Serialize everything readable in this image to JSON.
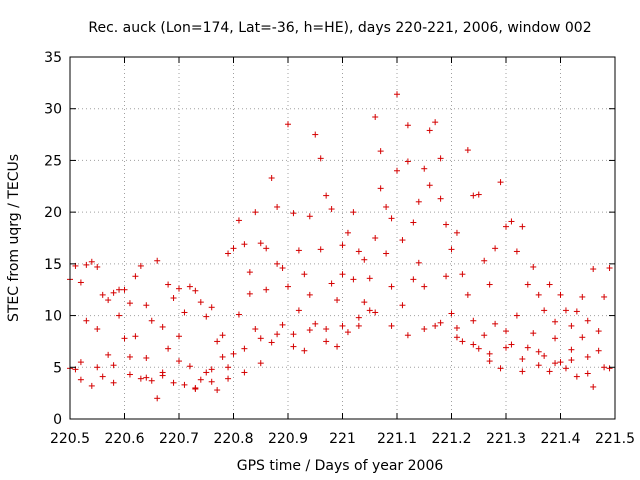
{
  "chart_data": {
    "type": "scatter",
    "title": "Rec. auck (Lon=174, Lat=-36, h=HE), days 220-221, 2006, window 002",
    "xlabel": "GPS time / Days of year 2006",
    "ylabel": "STEC from uqrg / TECUs",
    "xlim": [
      220.5,
      221.5
    ],
    "ylim": [
      0,
      35
    ],
    "xticks": [
      220.5,
      220.6,
      220.7,
      220.8,
      220.9,
      221,
      221.1,
      221.2,
      221.3,
      221.4,
      221.5
    ],
    "xtick_labels": [
      "220.5",
      "220.6",
      "220.7",
      "220.8",
      "220.9",
      "221",
      "221.1",
      "221.2",
      "221.3",
      "221.4",
      "221.5"
    ],
    "yticks": [
      0,
      5,
      10,
      15,
      20,
      25,
      30,
      35
    ],
    "ytick_labels": [
      "0",
      "5",
      "10",
      "15",
      "20",
      "25",
      "30",
      "35"
    ],
    "grid": true,
    "marker": "+",
    "color": "#d40000",
    "points": [
      [
        220.5,
        4.9
      ],
      [
        220.5,
        13.5
      ],
      [
        220.51,
        14.8
      ],
      [
        220.51,
        4.8
      ],
      [
        220.52,
        13.2
      ],
      [
        220.52,
        3.8
      ],
      [
        220.53,
        14.9
      ],
      [
        220.53,
        9.5
      ],
      [
        220.54,
        15.2
      ],
      [
        220.54,
        3.2
      ],
      [
        220.55,
        14.7
      ],
      [
        220.55,
        8.7
      ],
      [
        220.56,
        12.0
      ],
      [
        220.56,
        4.1
      ],
      [
        220.57,
        11.5
      ],
      [
        220.57,
        6.2
      ],
      [
        220.58,
        12.2
      ],
      [
        220.58,
        3.5
      ],
      [
        220.59,
        12.5
      ],
      [
        220.59,
        10.0
      ],
      [
        220.6,
        12.5
      ],
      [
        220.6,
        7.8
      ],
      [
        220.61,
        11.2
      ],
      [
        220.61,
        4.3
      ],
      [
        220.62,
        13.8
      ],
      [
        220.62,
        8.0
      ],
      [
        220.63,
        14.8
      ],
      [
        220.63,
        3.9
      ],
      [
        220.64,
        11.0
      ],
      [
        220.64,
        5.9
      ],
      [
        220.65,
        9.5
      ],
      [
        220.65,
        3.7
      ],
      [
        220.66,
        15.3
      ],
      [
        220.66,
        2.0
      ],
      [
        220.67,
        8.9
      ],
      [
        220.67,
        4.2
      ],
      [
        220.68,
        13.0
      ],
      [
        220.68,
        6.8
      ],
      [
        220.69,
        11.7
      ],
      [
        220.69,
        3.5
      ],
      [
        220.7,
        12.6
      ],
      [
        220.7,
        8.0
      ],
      [
        220.71,
        10.3
      ],
      [
        220.71,
        3.3
      ],
      [
        220.72,
        12.8
      ],
      [
        220.72,
        5.1
      ],
      [
        220.73,
        12.4
      ],
      [
        220.73,
        2.9
      ],
      [
        220.74,
        11.3
      ],
      [
        220.74,
        3.8
      ],
      [
        220.75,
        9.9
      ],
      [
        220.75,
        4.5
      ],
      [
        220.76,
        10.8
      ],
      [
        220.76,
        3.6
      ],
      [
        220.77,
        7.5
      ],
      [
        220.77,
        2.8
      ],
      [
        220.78,
        6.0
      ],
      [
        220.78,
        8.1
      ],
      [
        220.79,
        16.0
      ],
      [
        220.79,
        3.9
      ],
      [
        220.8,
        16.5
      ],
      [
        220.8,
        6.3
      ],
      [
        220.81,
        19.2
      ],
      [
        220.81,
        10.1
      ],
      [
        220.82,
        16.9
      ],
      [
        220.82,
        4.5
      ],
      [
        220.83,
        14.2
      ],
      [
        220.83,
        12.1
      ],
      [
        220.84,
        20.0
      ],
      [
        220.84,
        8.7
      ],
      [
        220.85,
        17.0
      ],
      [
        220.85,
        5.4
      ],
      [
        220.86,
        16.5
      ],
      [
        220.86,
        12.5
      ],
      [
        220.87,
        23.3
      ],
      [
        220.87,
        7.4
      ],
      [
        220.88,
        20.5
      ],
      [
        220.88,
        15.0
      ],
      [
        220.89,
        14.6
      ],
      [
        220.89,
        9.1
      ],
      [
        220.9,
        28.5
      ],
      [
        220.9,
        12.8
      ],
      [
        220.91,
        19.9
      ],
      [
        220.91,
        8.2
      ],
      [
        220.92,
        16.3
      ],
      [
        220.92,
        10.5
      ],
      [
        220.93,
        14.0
      ],
      [
        220.93,
        6.6
      ],
      [
        220.94,
        19.6
      ],
      [
        220.94,
        12.0
      ],
      [
        220.95,
        27.5
      ],
      [
        220.95,
        9.2
      ],
      [
        220.96,
        25.2
      ],
      [
        220.96,
        16.4
      ],
      [
        220.97,
        21.6
      ],
      [
        220.97,
        8.7
      ],
      [
        220.98,
        20.3
      ],
      [
        220.98,
        13.1
      ],
      [
        220.99,
        11.5
      ],
      [
        220.99,
        7.0
      ],
      [
        221.0,
        14.0
      ],
      [
        221.0,
        16.8
      ],
      [
        221.01,
        18.0
      ],
      [
        221.01,
        8.4
      ],
      [
        221.02,
        20.0
      ],
      [
        221.02,
        13.5
      ],
      [
        221.03,
        16.2
      ],
      [
        221.03,
        9.0
      ],
      [
        221.04,
        15.4
      ],
      [
        221.04,
        11.3
      ],
      [
        221.05,
        13.6
      ],
      [
        221.05,
        10.5
      ],
      [
        221.06,
        29.2
      ],
      [
        221.06,
        17.5
      ],
      [
        221.07,
        25.9
      ],
      [
        221.07,
        22.3
      ],
      [
        221.08,
        20.5
      ],
      [
        221.08,
        16.0
      ],
      [
        221.09,
        19.4
      ],
      [
        221.09,
        12.8
      ],
      [
        221.1,
        31.4
      ],
      [
        221.1,
        24.0
      ],
      [
        221.11,
        17.3
      ],
      [
        221.11,
        11.0
      ],
      [
        221.12,
        28.4
      ],
      [
        221.12,
        24.9
      ],
      [
        221.13,
        19.0
      ],
      [
        221.13,
        13.5
      ],
      [
        221.14,
        21.0
      ],
      [
        221.14,
        15.1
      ],
      [
        221.15,
        24.2
      ],
      [
        221.15,
        12.8
      ],
      [
        221.16,
        27.9
      ],
      [
        221.16,
        22.6
      ],
      [
        221.17,
        28.7
      ],
      [
        221.17,
        9.0
      ],
      [
        221.18,
        25.2
      ],
      [
        221.18,
        21.3
      ],
      [
        221.19,
        18.8
      ],
      [
        221.19,
        13.8
      ],
      [
        221.2,
        16.4
      ],
      [
        221.2,
        10.2
      ],
      [
        221.21,
        18.0
      ],
      [
        221.21,
        8.8
      ],
      [
        221.22,
        14.0
      ],
      [
        221.22,
        7.5
      ],
      [
        221.23,
        26.0
      ],
      [
        221.23,
        12.0
      ],
      [
        221.24,
        21.6
      ],
      [
        221.24,
        9.5
      ],
      [
        221.25,
        21.7
      ],
      [
        221.25,
        6.8
      ],
      [
        221.26,
        15.3
      ],
      [
        221.26,
        8.1
      ],
      [
        221.27,
        13.0
      ],
      [
        221.27,
        5.6
      ],
      [
        221.28,
        16.5
      ],
      [
        221.28,
        9.2
      ],
      [
        221.29,
        22.9
      ],
      [
        221.29,
        4.9
      ],
      [
        221.3,
        18.6
      ],
      [
        221.3,
        8.5
      ],
      [
        221.31,
        19.1
      ],
      [
        221.31,
        7.2
      ],
      [
        221.32,
        16.2
      ],
      [
        221.32,
        10.0
      ],
      [
        221.33,
        18.6
      ],
      [
        221.33,
        4.6
      ],
      [
        221.34,
        13.0
      ],
      [
        221.34,
        6.9
      ],
      [
        221.35,
        14.7
      ],
      [
        221.35,
        8.3
      ],
      [
        221.36,
        12.0
      ],
      [
        221.36,
        5.2
      ],
      [
        221.37,
        10.5
      ],
      [
        221.37,
        6.1
      ],
      [
        221.38,
        13.0
      ],
      [
        221.38,
        4.6
      ],
      [
        221.39,
        9.4
      ],
      [
        221.39,
        7.8
      ],
      [
        221.4,
        12.0
      ],
      [
        221.4,
        5.5
      ],
      [
        221.41,
        10.5
      ],
      [
        221.41,
        4.9
      ],
      [
        221.42,
        9.0
      ],
      [
        221.42,
        6.7
      ],
      [
        221.43,
        10.4
      ],
      [
        221.43,
        4.1
      ],
      [
        221.44,
        11.8
      ],
      [
        221.44,
        7.9
      ],
      [
        221.45,
        9.5
      ],
      [
        221.45,
        4.4
      ],
      [
        221.46,
        14.5
      ],
      [
        221.46,
        3.1
      ],
      [
        221.47,
        6.6
      ],
      [
        221.47,
        8.5
      ],
      [
        221.48,
        11.8
      ],
      [
        221.48,
        5.0
      ],
      [
        221.49,
        14.6
      ],
      [
        221.49,
        4.9
      ],
      [
        220.52,
        5.5
      ],
      [
        220.55,
        5.0
      ],
      [
        220.58,
        5.2
      ],
      [
        220.61,
        6.0
      ],
      [
        220.64,
        4.0
      ],
      [
        220.67,
        4.5
      ],
      [
        220.7,
        5.6
      ],
      [
        220.73,
        3.0
      ],
      [
        220.76,
        4.8
      ],
      [
        220.79,
        5.0
      ],
      [
        220.82,
        6.8
      ],
      [
        220.85,
        7.8
      ],
      [
        220.88,
        8.2
      ],
      [
        220.91,
        7.0
      ],
      [
        220.94,
        8.6
      ],
      [
        220.97,
        7.5
      ],
      [
        221.0,
        9.0
      ],
      [
        221.03,
        9.8
      ],
      [
        221.06,
        10.3
      ],
      [
        221.09,
        9.0
      ],
      [
        221.12,
        8.1
      ],
      [
        221.15,
        8.7
      ],
      [
        221.18,
        9.3
      ],
      [
        221.21,
        7.9
      ],
      [
        221.24,
        7.2
      ],
      [
        221.27,
        6.3
      ],
      [
        221.3,
        6.9
      ],
      [
        221.33,
        5.8
      ],
      [
        221.36,
        6.5
      ],
      [
        221.39,
        5.4
      ],
      [
        221.42,
        5.7
      ],
      [
        221.45,
        6.0
      ]
    ]
  }
}
